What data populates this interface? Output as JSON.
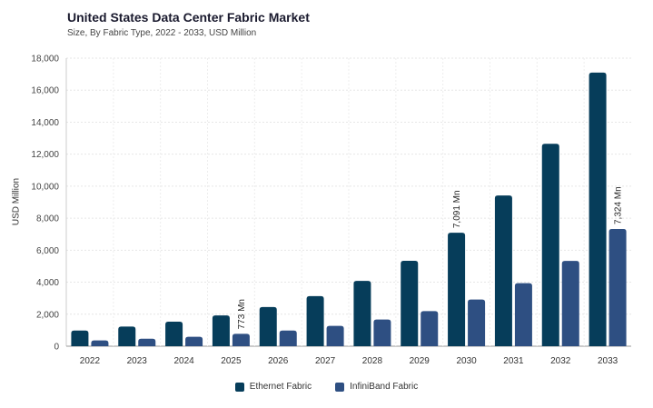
{
  "chart_data": {
    "type": "bar",
    "title": "United States Data Center Fabric Market",
    "subtitle": "Size, By Fabric Type, 2022 - 2033, USD Million",
    "ylabel": "USD Million",
    "xlabel": "",
    "ylim": [
      0,
      18000
    ],
    "yticks": [
      "0",
      "2,000",
      "4,000",
      "6,000",
      "8,000",
      "10,000",
      "12,000",
      "14,000",
      "16,000",
      "18,000"
    ],
    "grid": true,
    "legend_position": "bottom-center",
    "categories": [
      "2022",
      "2023",
      "2024",
      "2025",
      "2026",
      "2027",
      "2028",
      "2029",
      "2030",
      "2031",
      "2032",
      "2033"
    ],
    "series": [
      {
        "name": "Ethernet Fabric",
        "color": "#063d5a",
        "values": [
          980,
          1230,
          1530,
          1920,
          2450,
          3130,
          4080,
          5340,
          7091,
          9420,
          12650,
          17100
        ]
      },
      {
        "name": "InfiniBand Fabric",
        "color": "#2e4f82",
        "values": [
          360,
          470,
          590,
          773,
          980,
          1270,
          1670,
          2190,
          2920,
          3940,
          5330,
          7324
        ]
      }
    ],
    "annotations": [
      {
        "series": 1,
        "index": 3,
        "text": "773 Mn"
      },
      {
        "series": 0,
        "index": 8,
        "text": "7,091 Mn"
      },
      {
        "series": 1,
        "index": 11,
        "text": "7,324 Mn"
      }
    ]
  }
}
